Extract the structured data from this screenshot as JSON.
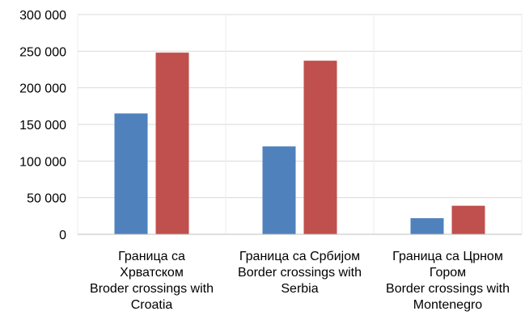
{
  "chart_data": {
    "type": "bar",
    "title": "",
    "xlabel": "",
    "ylabel": "",
    "ylim": [
      0,
      300000
    ],
    "yticks": [
      0,
      50000,
      100000,
      150000,
      200000,
      250000,
      300000
    ],
    "ytick_labels": [
      "0",
      "50 000",
      "100 000",
      "150 000",
      "200 000",
      "250 000",
      "300 000"
    ],
    "grid": true,
    "legend": "none",
    "categories": [
      [
        "Граница са",
        "Хрватском",
        "Broder crossings with",
        "Croatia"
      ],
      [
        "Граница са Србијом",
        "Border crossings with",
        "Serbia"
      ],
      [
        "Граница са Црном",
        "Гором",
        "Border crossings with",
        "Montenegro"
      ]
    ],
    "series": [
      {
        "color": "#4f81bd",
        "values": [
          165000,
          120000,
          22000
        ]
      },
      {
        "color": "#c0504d",
        "values": [
          248000,
          237000,
          39000
        ]
      }
    ]
  }
}
